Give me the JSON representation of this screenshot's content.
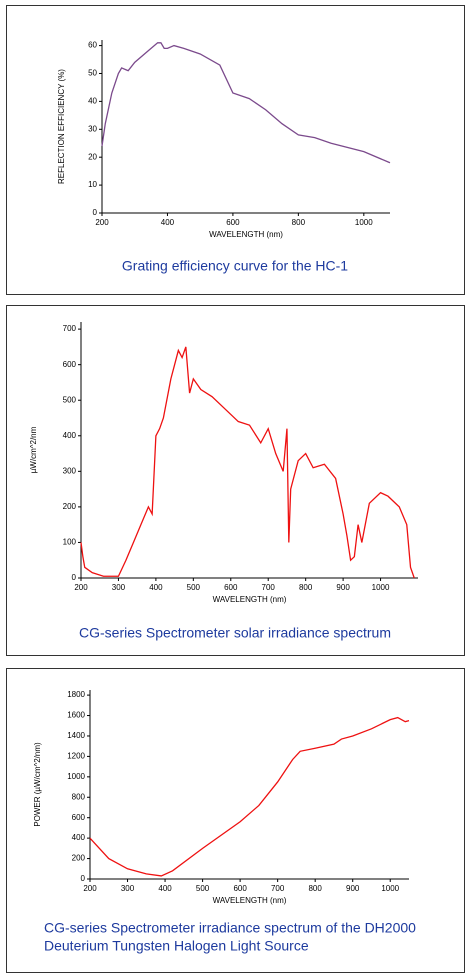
{
  "chart_data": [
    {
      "type": "line",
      "title": "Grating efficiency curve for the HC-1",
      "xlabel": "WAVELENGTH (nm)",
      "ylabel": "REFLECTION EFFICIENCY (%)",
      "x": [
        200,
        210,
        230,
        250,
        260,
        280,
        300,
        340,
        370,
        380,
        390,
        400,
        420,
        450,
        500,
        560,
        600,
        650,
        700,
        750,
        800,
        850,
        900,
        1000,
        1080
      ],
      "values": [
        24,
        32,
        43,
        50,
        52,
        51,
        54,
        58,
        61,
        61,
        59,
        59,
        60,
        59,
        57,
        53,
        43,
        41,
        37,
        32,
        28,
        27,
        25,
        22,
        18
      ],
      "color": "#7b4a8c",
      "xlim": [
        200,
        1080
      ],
      "ylim": [
        0,
        62
      ],
      "xticks": [
        200,
        400,
        600,
        800,
        1000
      ],
      "yticks": [
        0,
        10,
        20,
        30,
        40,
        50,
        60
      ]
    },
    {
      "type": "line",
      "title": "CG-series Spectrometer solar irradiance spectrum",
      "xlabel": "WAVELENGTH (nm)",
      "ylabel": "µW/cm^2/nm",
      "x": [
        200,
        205,
        210,
        230,
        260,
        300,
        320,
        340,
        360,
        380,
        390,
        400,
        410,
        420,
        440,
        450,
        460,
        470,
        480,
        490,
        500,
        520,
        550,
        580,
        600,
        620,
        650,
        680,
        700,
        720,
        740,
        750,
        755,
        760,
        780,
        800,
        820,
        850,
        880,
        900,
        910,
        920,
        930,
        940,
        950,
        970,
        1000,
        1020,
        1050,
        1070,
        1080,
        1090
      ],
      "values": [
        100,
        60,
        30,
        15,
        5,
        5,
        50,
        100,
        150,
        200,
        180,
        400,
        420,
        450,
        560,
        600,
        640,
        620,
        650,
        520,
        560,
        530,
        510,
        480,
        460,
        440,
        430,
        380,
        420,
        350,
        300,
        420,
        100,
        250,
        330,
        350,
        310,
        320,
        280,
        180,
        120,
        50,
        60,
        150,
        100,
        210,
        240,
        230,
        200,
        150,
        30,
        0
      ],
      "color": "#ee1111",
      "xlim": [
        200,
        1100
      ],
      "ylim": [
        0,
        720
      ],
      "xticks": [
        200,
        300,
        400,
        500,
        600,
        700,
        800,
        900,
        1000
      ],
      "yticks": [
        0,
        100,
        200,
        300,
        400,
        500,
        600,
        700
      ]
    },
    {
      "type": "line",
      "title": "CG-series Spectrometer irradiance spectrum of the DH2000",
      "subtitle": "Deuterium Tungsten Halogen Light Source",
      "xlabel": "WAVELENGTH (nm)",
      "ylabel": "POWER (µW/cm^2/nm)",
      "x": [
        200,
        250,
        300,
        350,
        390,
        420,
        500,
        600,
        650,
        700,
        740,
        760,
        800,
        850,
        870,
        900,
        950,
        1000,
        1020,
        1040,
        1050
      ],
      "values": [
        400,
        200,
        100,
        50,
        30,
        80,
        300,
        560,
        720,
        950,
        1170,
        1250,
        1280,
        1320,
        1370,
        1400,
        1470,
        1560,
        1580,
        1540,
        1550
      ],
      "color": "#ee1111",
      "xlim": [
        200,
        1050
      ],
      "ylim": [
        0,
        1850
      ],
      "xticks": [
        200,
        300,
        400,
        500,
        600,
        700,
        800,
        900,
        1000
      ],
      "yticks": [
        0,
        200,
        400,
        600,
        800,
        1000,
        1200,
        1400,
        1600,
        1800
      ]
    }
  ]
}
